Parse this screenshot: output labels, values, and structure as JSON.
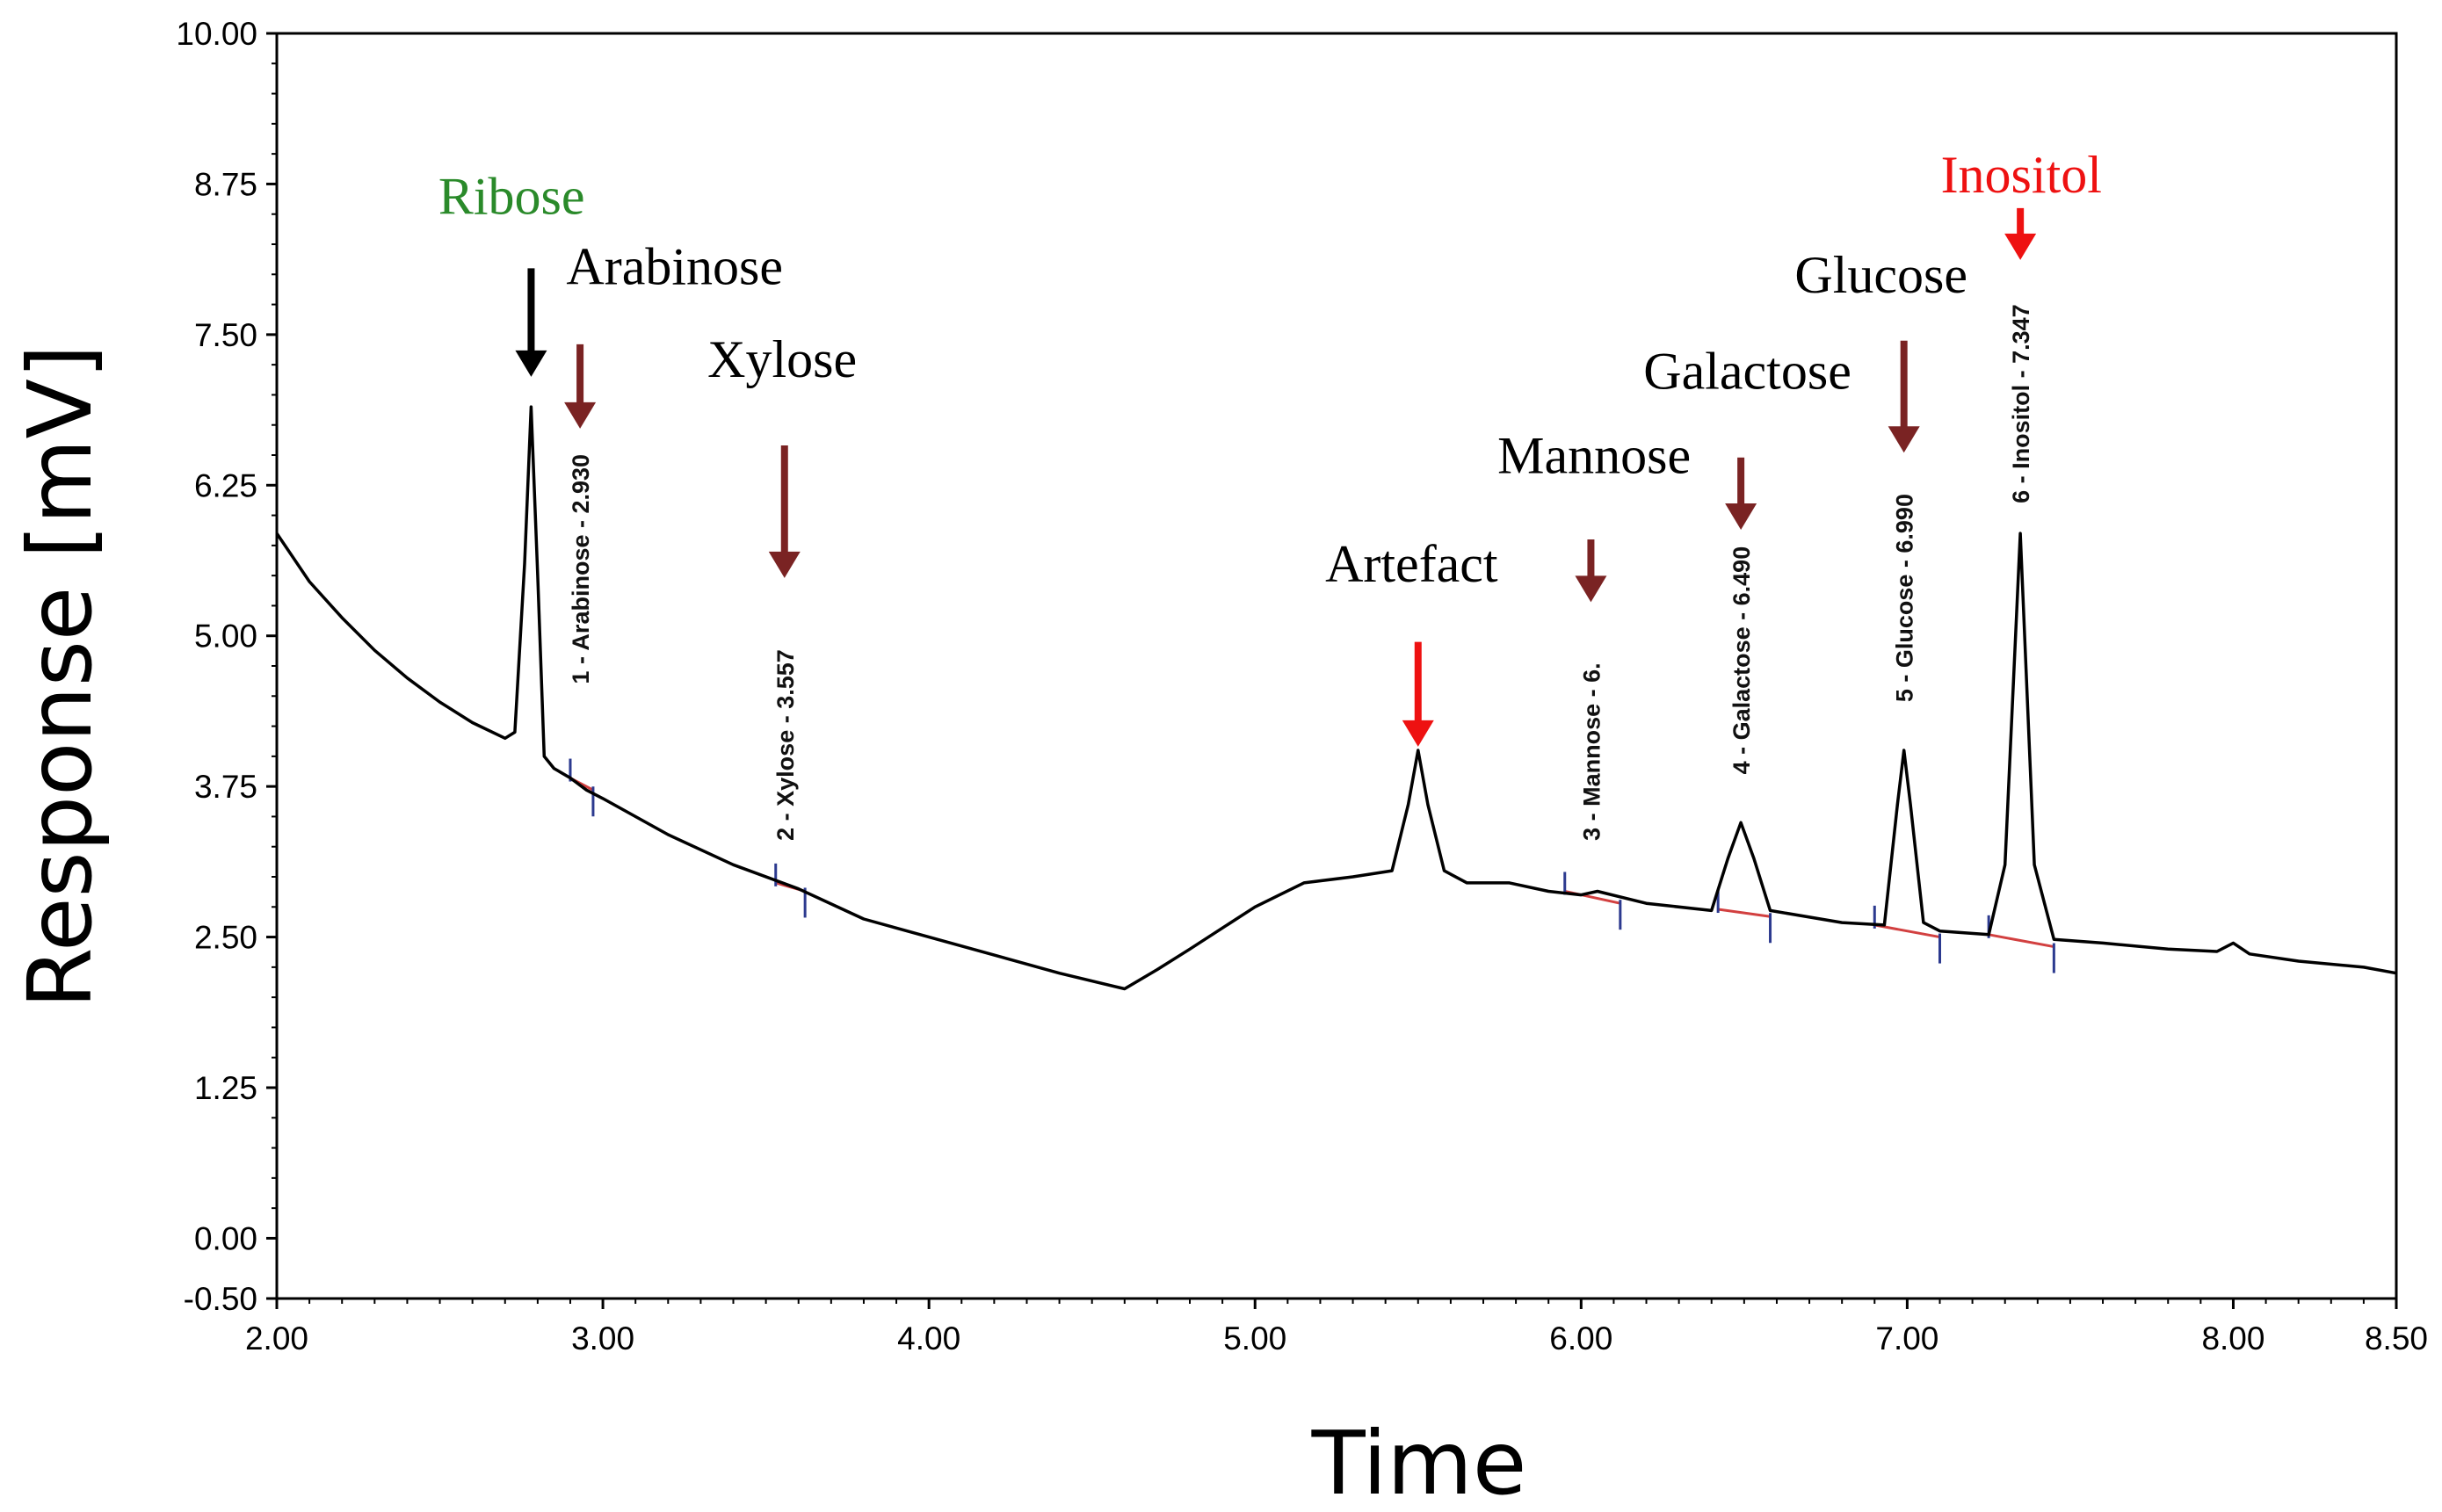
{
  "chart_data": {
    "type": "line",
    "title": "",
    "xlabel": "Time",
    "ylabel": "Response [mV]",
    "xlim": [
      2.0,
      8.5
    ],
    "ylim": [
      -0.5,
      10.0
    ],
    "xticks": [
      "2.00",
      "3.00",
      "4.00",
      "5.00",
      "6.00",
      "7.00",
      "8.00",
      "8.50"
    ],
    "yticks": [
      "10.00",
      "8.75",
      "7.50",
      "6.25",
      "5.00",
      "3.75",
      "2.50",
      "1.25",
      "0.00",
      "-0.50"
    ],
    "grid": false,
    "series": [
      {
        "name": "chromatogram",
        "color": "#000000",
        "x": [
          2.0,
          2.1,
          2.2,
          2.3,
          2.4,
          2.5,
          2.6,
          2.7,
          2.73,
          2.76,
          2.78,
          2.8,
          2.82,
          2.85,
          2.9,
          2.95,
          3.0,
          3.2,
          3.4,
          3.6,
          3.8,
          4.0,
          4.2,
          4.4,
          4.6,
          4.7,
          4.8,
          5.0,
          5.15,
          5.3,
          5.42,
          5.47,
          5.5,
          5.53,
          5.58,
          5.65,
          5.78,
          5.9,
          6.0,
          6.05,
          6.2,
          6.4,
          6.45,
          6.49,
          6.53,
          6.58,
          6.8,
          6.93,
          6.97,
          6.99,
          7.01,
          7.05,
          7.1,
          7.25,
          7.3,
          7.347,
          7.39,
          7.45,
          7.6,
          7.8,
          7.95,
          8.0,
          8.05,
          8.2,
          8.4,
          8.5
        ],
        "y": [
          5.85,
          5.45,
          5.15,
          4.88,
          4.65,
          4.45,
          4.28,
          4.15,
          4.2,
          5.6,
          6.9,
          5.5,
          4.0,
          3.9,
          3.82,
          3.72,
          3.65,
          3.35,
          3.1,
          2.9,
          2.65,
          2.5,
          2.35,
          2.2,
          2.07,
          2.23,
          2.4,
          2.75,
          2.95,
          3.0,
          3.05,
          3.6,
          4.05,
          3.6,
          3.05,
          2.95,
          2.95,
          2.88,
          2.85,
          2.88,
          2.78,
          2.72,
          3.15,
          3.45,
          3.15,
          2.72,
          2.62,
          2.6,
          3.6,
          4.05,
          3.6,
          2.62,
          2.55,
          2.52,
          3.1,
          5.85,
          3.1,
          2.48,
          2.45,
          2.4,
          2.38,
          2.45,
          2.36,
          2.3,
          2.25,
          2.2
        ]
      },
      {
        "name": "integration baselines",
        "color": "#d24040",
        "segments": [
          {
            "x": [
              2.9,
              2.97
            ],
            "y": [
              3.82,
              3.72
            ]
          },
          {
            "x": [
              3.53,
              3.62
            ],
            "y": [
              2.95,
              2.88
            ]
          },
          {
            "x": [
              5.95,
              6.12
            ],
            "y": [
              2.88,
              2.78
            ]
          },
          {
            "x": [
              6.42,
              6.58
            ],
            "y": [
              2.73,
              2.67
            ]
          },
          {
            "x": [
              6.9,
              7.1
            ],
            "y": [
              2.6,
              2.5
            ]
          },
          {
            "x": [
              7.25,
              7.45
            ],
            "y": [
              2.52,
              2.42
            ]
          }
        ]
      }
    ],
    "peak_labels": [
      {
        "x": 2.93,
        "y": 4.6,
        "text": "1 - Arabinose - 2.930",
        "endx": 2.97,
        "endy": 3.72
      },
      {
        "x": 3.557,
        "y": 3.3,
        "text": "2 - Xylose - 3.557",
        "endx": 3.62,
        "endy": 2.88
      },
      {
        "x": 6.03,
        "y": 3.3,
        "text": "3 - Mannose - 6.",
        "endx": 6.12,
        "endy": 2.78
      },
      {
        "x": 6.49,
        "y": 3.85,
        "text": "4 - Galactose - 6.490",
        "endx": 6.58,
        "endy": 2.67
      },
      {
        "x": 6.99,
        "y": 4.45,
        "text": "5 - Glucose - 6.990",
        "endx": 7.1,
        "endy": 2.5
      },
      {
        "x": 7.347,
        "y": 6.1,
        "text": "6 - Inositol - 7.347",
        "endx": 7.45,
        "endy": 2.42
      }
    ],
    "annotations": [
      {
        "text": "Ribose",
        "color": "#2a8a2a",
        "x": 2.72,
        "y": 8.5,
        "arrow_x": 2.78,
        "arrow_from": 8.05,
        "arrow_to": 7.15,
        "arrow_color": "#000000"
      },
      {
        "text": "Arabinose",
        "color": "#000000",
        "x": 3.22,
        "y": 7.92,
        "arrow_x": 2.93,
        "arrow_from": 7.42,
        "arrow_to": 6.72,
        "arrow_color": "#7a2323"
      },
      {
        "text": "Xylose",
        "color": "#000000",
        "x": 3.55,
        "y": 7.15,
        "arrow_x": 3.557,
        "arrow_from": 6.58,
        "arrow_to": 5.48,
        "arrow_color": "#7a2323"
      },
      {
        "text": "Artefact",
        "color": "#000000",
        "x": 5.48,
        "y": 5.45,
        "arrow_x": 5.5,
        "arrow_from": 4.95,
        "arrow_to": 4.08,
        "arrow_color": "#ee1111"
      },
      {
        "text": "Mannose",
        "color": "#000000",
        "x": 6.04,
        "y": 6.35,
        "arrow_x": 6.03,
        "arrow_from": 5.8,
        "arrow_to": 5.28,
        "arrow_color": "#7a2323"
      },
      {
        "text": "Galactose",
        "color": "#000000",
        "x": 6.51,
        "y": 7.05,
        "arrow_x": 6.49,
        "arrow_from": 6.48,
        "arrow_to": 5.88,
        "arrow_color": "#7a2323"
      },
      {
        "text": "Glucose",
        "color": "#000000",
        "x": 6.92,
        "y": 7.85,
        "arrow_x": 6.99,
        "arrow_from": 7.45,
        "arrow_to": 6.52,
        "arrow_color": "#7a2323"
      },
      {
        "text": "Inositol",
        "color": "#ee1111",
        "x": 7.35,
        "y": 8.68,
        "arrow_x": 7.347,
        "arrow_from": 8.55,
        "arrow_to": 8.12,
        "arrow_color": "#ee1111"
      }
    ]
  }
}
